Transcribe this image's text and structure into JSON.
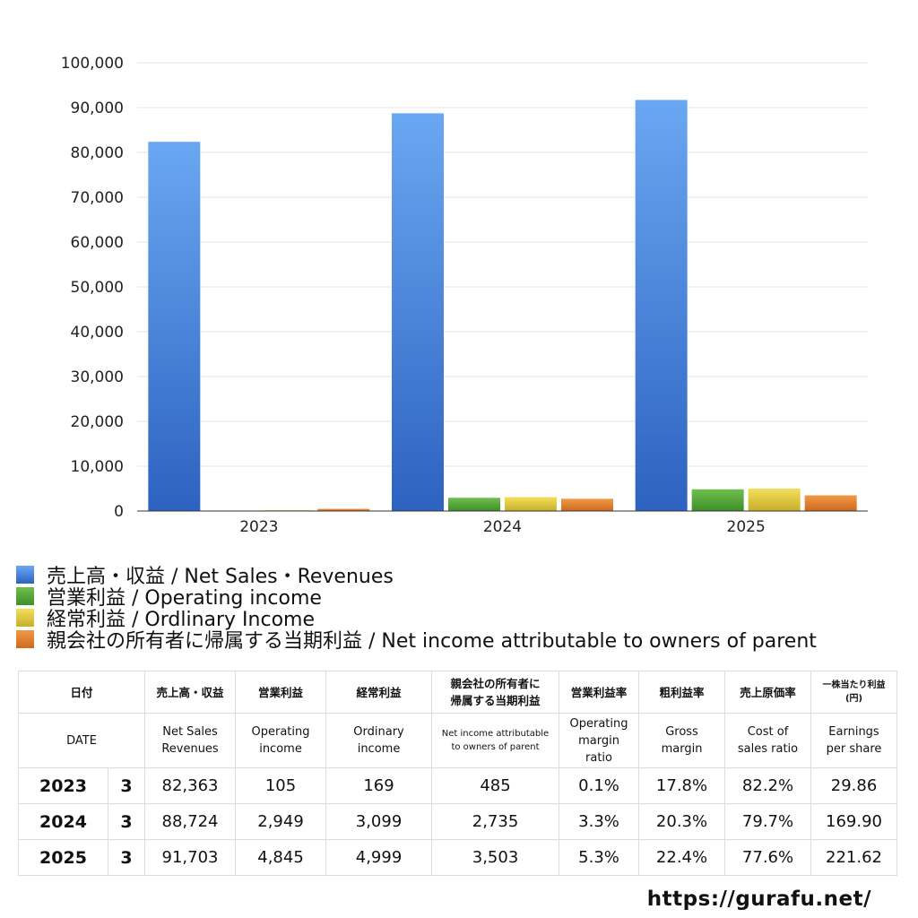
{
  "chart_data": {
    "type": "bar",
    "categories": [
      "2023",
      "2024",
      "2025"
    ],
    "series": [
      {
        "name": "売上高・収益 / Net Sales・Revenues",
        "values": [
          82363,
          88724,
          91703
        ],
        "color_top": "#6aa7f2",
        "color_bottom": "#2d62c0"
      },
      {
        "name": "営業利益 / Operating income",
        "values": [
          105,
          2949,
          4845
        ],
        "color_top": "#6fbe4e",
        "color_bottom": "#3f8f2a"
      },
      {
        "name": "経常利益 / Ordlinary Income",
        "values": [
          169,
          3099,
          4999
        ],
        "color_top": "#f2df5a",
        "color_bottom": "#c9ae2a"
      },
      {
        "name": "親会社の所有者に帰属する当期利益 / Net income attributable to owners of parent",
        "values": [
          485,
          2735,
          3503
        ],
        "color_top": "#f09a48",
        "color_bottom": "#d0691e"
      }
    ],
    "yticks": [
      "0",
      "10,000",
      "20,000",
      "30,000",
      "40,000",
      "50,000",
      "60,000",
      "70,000",
      "80,000",
      "90,000",
      "100,000"
    ],
    "ylim": [
      0,
      100000
    ],
    "grid": true,
    "legend_position": "bottom"
  },
  "table": {
    "header_ja": {
      "date": "日付",
      "sales": "売上高・収益",
      "operating": "営業利益",
      "ordinary": "経常利益",
      "net_line1": "親会社の所有者に",
      "net_line2": "帰属する当期利益",
      "op_margin": "営業利益率",
      "gross": "粗利益率",
      "cost": "売上原価率",
      "eps_line1": "一株当たり利益",
      "eps_line2": "(円)"
    },
    "header_en": {
      "date": "DATE",
      "sales_line1": "Net Sales",
      "sales_line2": "Revenues",
      "operating_line1": "Operating",
      "operating_line2": "income",
      "ordinary_line1": "Ordinary",
      "ordinary_line2": "income",
      "net_line1": "Net income attributable",
      "net_line2": "to owners of parent",
      "op_margin_line1": "Operating",
      "op_margin_line2": "margin",
      "op_margin_line3": "ratio",
      "gross_line1": "Gross",
      "gross_line2": "margin",
      "cost_line1": "Cost of",
      "cost_line2": "sales ratio",
      "eps_line1": "Earnings",
      "eps_line2": "per share"
    },
    "rows": [
      {
        "year": "2023",
        "month": "3",
        "sales": "82,363",
        "operating": "105",
        "ordinary": "169",
        "net": "485",
        "op_margin": "0.1%",
        "gross": "17.8%",
        "cost": "82.2%",
        "eps": "29.86"
      },
      {
        "year": "2024",
        "month": "3",
        "sales": "88,724",
        "operating": "2,949",
        "ordinary": "3,099",
        "net": "2,735",
        "op_margin": "3.3%",
        "gross": "20.3%",
        "cost": "79.7%",
        "eps": "169.90"
      },
      {
        "year": "2025",
        "month": "3",
        "sales": "91,703",
        "operating": "4,845",
        "ordinary": "4,999",
        "net": "3,503",
        "op_margin": "5.3%",
        "gross": "22.4%",
        "cost": "77.6%",
        "eps": "221.62"
      }
    ]
  },
  "site_url": "https://gurafu.net/"
}
